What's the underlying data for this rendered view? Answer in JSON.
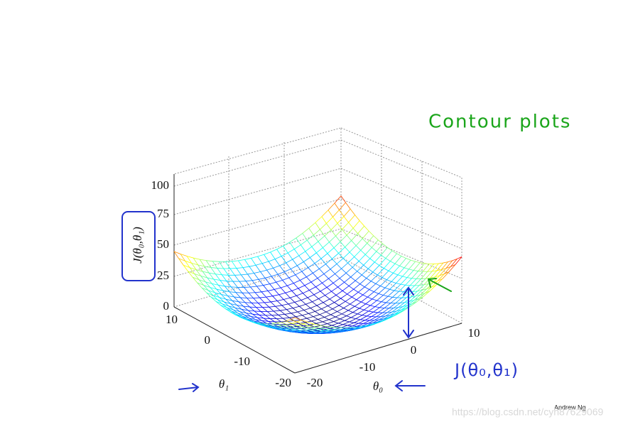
{
  "handwritten": {
    "title": "Contour plots",
    "cost_function": "J(θ₀,θ₁)"
  },
  "plot": {
    "z_label": "J(θ₀,θ₁)",
    "z_ticks": [
      "100",
      "75",
      "50",
      "25",
      "0"
    ],
    "theta1_ticks": [
      "10",
      "0",
      "-10",
      "-20"
    ],
    "theta0_ticks": [
      "-20",
      "-10",
      "0",
      "10"
    ],
    "theta1_label": "θ₁",
    "theta0_label": "θ₀"
  },
  "footer": {
    "author": "Andrew Ng",
    "watermark": "https://blog.csdn.net/cyh87629069"
  }
}
